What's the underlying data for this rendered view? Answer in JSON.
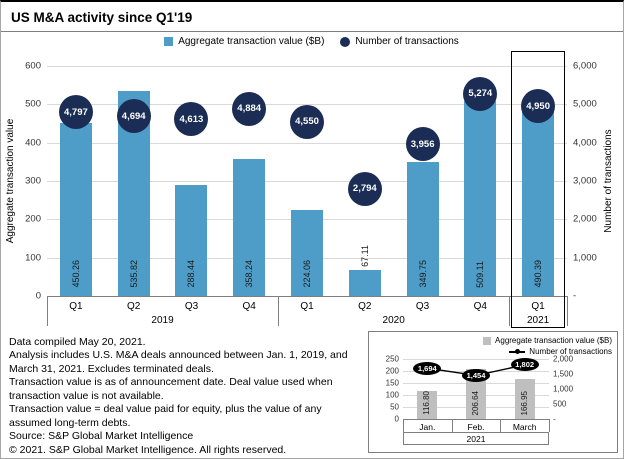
{
  "title": "US M&A activity since Q1'19",
  "chart_data": [
    {
      "type": "bar",
      "name": "quarterly-mna-activity",
      "categories": [
        "Q1",
        "Q2",
        "Q3",
        "Q4",
        "Q1",
        "Q2",
        "Q3",
        "Q4",
        "Q1"
      ],
      "year_groups": [
        {
          "label": "2019",
          "span": 4
        },
        {
          "label": "2020",
          "span": 4
        },
        {
          "label": "2021",
          "span": 1
        }
      ],
      "series": [
        {
          "name": "Aggregate transaction value ($B)",
          "type": "bar",
          "color": "#4E9DC9",
          "values": [
            450.26,
            535.82,
            288.44,
            358.24,
            224.06,
            67.11,
            349.75,
            509.11,
            490.39
          ],
          "labels": [
            "450.26",
            "535.82",
            "288.44",
            "358.24",
            "224.06",
            "67.11",
            "349.75",
            "509.11",
            "490.39"
          ]
        },
        {
          "name": "Number of transactions",
          "type": "dot",
          "color": "#1B2D55",
          "values": [
            4797,
            4694,
            4613,
            4884,
            4550,
            2794,
            3956,
            5274,
            4950
          ],
          "labels": [
            "4,797",
            "4,694",
            "4,613",
            "4,884",
            "4,550",
            "2,794",
            "3,956",
            "5,274",
            "4,950"
          ]
        }
      ],
      "ylabel_left": "Aggregate transaction value",
      "ylabel_right": "Number of transactions",
      "ylim_left": [
        0,
        600
      ],
      "ylim_right": [
        0,
        6000
      ],
      "left_ticks": [
        "600",
        "500",
        "400",
        "300",
        "200",
        "100",
        "0"
      ],
      "right_ticks": [
        "6,000",
        "5,000",
        "4,000",
        "3,000",
        "2,000",
        "1,000",
        "-"
      ],
      "highlight_group": "2021",
      "legend_position": "top",
      "grid": true
    },
    {
      "type": "bar",
      "name": "monthly-2021-inset",
      "categories": [
        "Jan.",
        "Feb.",
        "March"
      ],
      "year_label": "2021",
      "series": [
        {
          "name": "Aggregate transaction value ($B)",
          "type": "bar",
          "color": "#BFBFBF",
          "values": [
            116.8,
            206.64,
            166.95
          ],
          "labels": [
            "116.80",
            "206.64",
            "166.95"
          ]
        },
        {
          "name": "Number of transactions",
          "type": "line",
          "color": "#000000",
          "values": [
            1694,
            1454,
            1802
          ],
          "labels": [
            "1,694",
            "1,454",
            "1,802"
          ]
        }
      ],
      "ylim_left": [
        0,
        250
      ],
      "ylim_right": [
        0,
        2000
      ],
      "left_ticks": [
        "250",
        "200",
        "150",
        "100",
        "50",
        "0"
      ],
      "right_ticks": [
        "2,000",
        "1,500",
        "1,000",
        "500",
        "-"
      ],
      "legend_position": "top-right",
      "grid": true
    }
  ],
  "footnotes": [
    "Data compiled May 20, 2021.",
    "Analysis includes U.S. M&A deals announced between Jan. 1, 2019, and March 31, 2021. Excludes terminated deals.",
    "Transaction value is as of announcement date. Deal value used when transaction value is not available.",
    "Transaction value = deal value paid for equity, plus the value of any assumed long-term debts.",
    "Source: S&P Global Market Intelligence",
    "© 2021. S&P Global Market Intelligence. All rights reserved."
  ]
}
